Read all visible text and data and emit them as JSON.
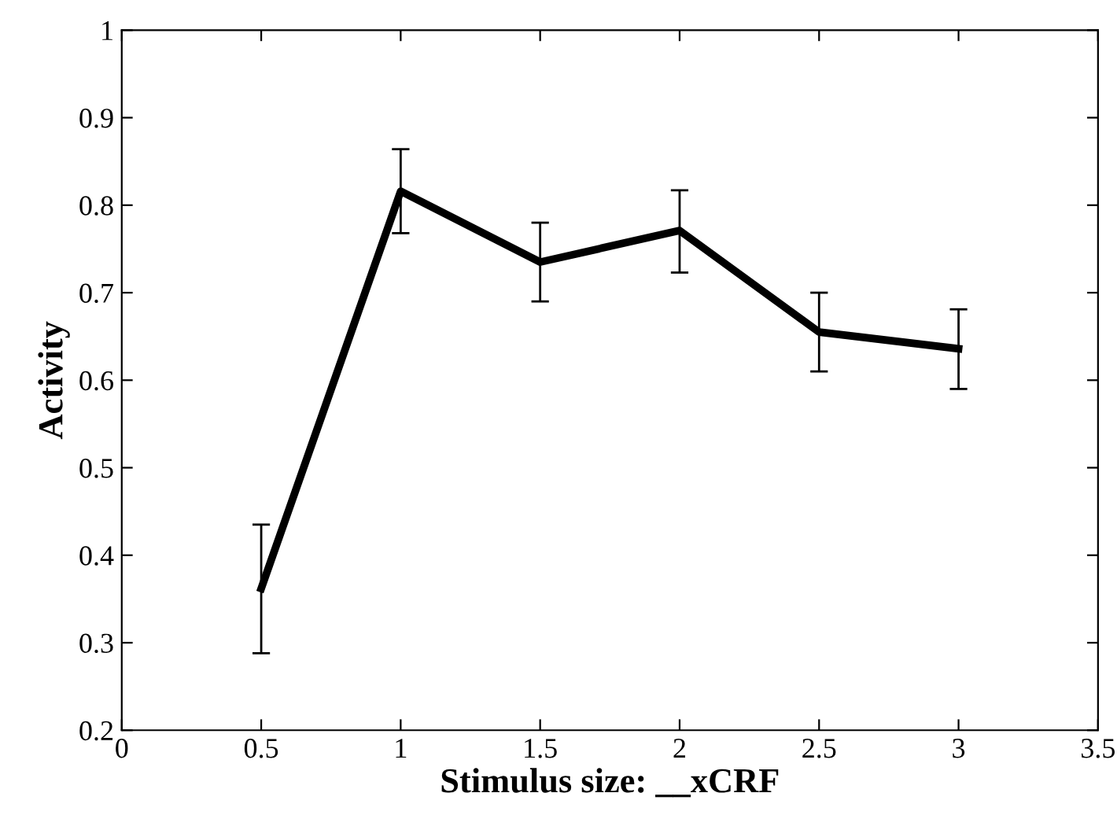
{
  "chart_data": {
    "type": "line",
    "xlabel": "Stimulus size: __xCRF",
    "ylabel": "Activity",
    "x": [
      0.5,
      1,
      1.5,
      2,
      2.5,
      3
    ],
    "series": [
      {
        "color": "#000000",
        "values": [
          0.362,
          0.816,
          0.735,
          0.771,
          0.655,
          0.636
        ],
        "errors": [
          [
            0.288,
            0.435
          ],
          [
            0.768,
            0.864
          ],
          [
            0.69,
            0.78
          ],
          [
            0.723,
            0.817
          ],
          [
            0.61,
            0.7
          ],
          [
            0.59,
            0.681
          ]
        ]
      }
    ],
    "xlim": [
      0,
      3.5
    ],
    "xticks": [
      0,
      0.5,
      1,
      1.5,
      2,
      2.5,
      3,
      3.5
    ],
    "ylim": [
      0.2,
      1
    ],
    "yticks": [
      0.2,
      0.3,
      0.4,
      0.5,
      0.6,
      0.7,
      0.8,
      0.9,
      1
    ],
    "grid": false,
    "legend": false,
    "marker": "none",
    "line_style": "solid"
  }
}
